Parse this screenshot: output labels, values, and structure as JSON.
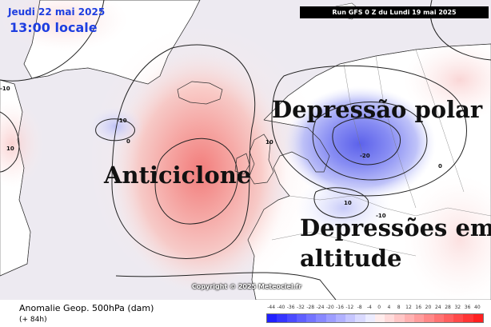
{
  "header": {
    "date": "Jeudi 22 mai 2025",
    "time": "13:00 locale",
    "run": "Run GFS 0 Z du Lundi 19 mai 2025"
  },
  "labels": {
    "polar_depression": "Depressão polar",
    "anticyclone": "Anticiclone",
    "altitude_line1": "Depressões em",
    "altitude_line2": "altitude"
  },
  "contour_labels": [
    "-10",
    "10",
    "-10",
    "0",
    "10",
    "-20",
    "10",
    "0",
    "-10"
  ],
  "copyright": "Copyright © 2025 Meteociel.fr",
  "legend": {
    "title": "Anomalie Geop. 500hPa (dam)",
    "subtitle": "(+ 84h)",
    "scale_values": [
      "-44",
      "-40",
      "-36",
      "-32",
      "-28",
      "-24",
      "-20",
      "-16",
      "-12",
      "-8",
      "-4",
      "0",
      "4",
      "8",
      "12",
      "16",
      "20",
      "24",
      "28",
      "32",
      "36",
      "40"
    ],
    "scale_colors": [
      "#2020ff",
      "#3535ff",
      "#4a4aff",
      "#5f5fff",
      "#7373ff",
      "#8888ff",
      "#9d9dff",
      "#b1b1ff",
      "#c6c6ff",
      "#dadaff",
      "#ececff",
      "#ffecec",
      "#ffdada",
      "#ffc6c6",
      "#ffb1b1",
      "#ff9d9d",
      "#ff8888",
      "#ff7373",
      "#ff5f5f",
      "#ff4a4a",
      "#ff3535",
      "#ff2020"
    ]
  }
}
